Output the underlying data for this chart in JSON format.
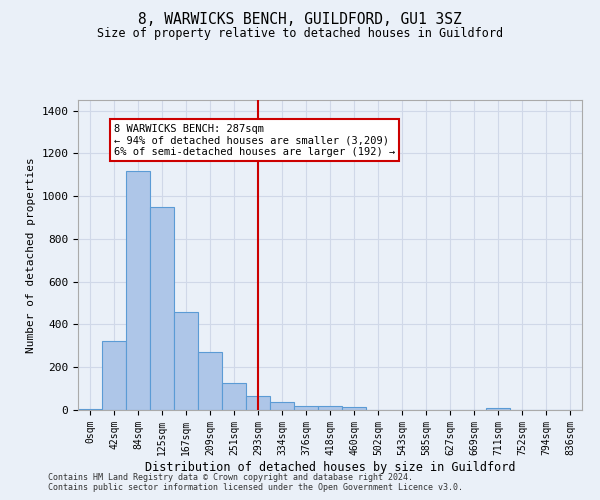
{
  "title1": "8, WARWICKS BENCH, GUILDFORD, GU1 3SZ",
  "title2": "Size of property relative to detached houses in Guildford",
  "xlabel": "Distribution of detached houses by size in Guildford",
  "ylabel": "Number of detached properties",
  "footnote1": "Contains HM Land Registry data © Crown copyright and database right 2024.",
  "footnote2": "Contains public sector information licensed under the Open Government Licence v3.0.",
  "bar_labels": [
    "0sqm",
    "42sqm",
    "84sqm",
    "125sqm",
    "167sqm",
    "209sqm",
    "251sqm",
    "293sqm",
    "334sqm",
    "376sqm",
    "418sqm",
    "460sqm",
    "502sqm",
    "543sqm",
    "585sqm",
    "627sqm",
    "669sqm",
    "711sqm",
    "752sqm",
    "794sqm",
    "836sqm"
  ],
  "bar_values": [
    5,
    325,
    1120,
    950,
    460,
    270,
    125,
    65,
    38,
    20,
    20,
    12,
    0,
    0,
    0,
    0,
    0,
    10,
    0,
    0,
    0
  ],
  "bar_color": "#aec6e8",
  "bar_edge_color": "#5b9bd5",
  "grid_color": "#d0d8e8",
  "background_color": "#eaf0f8",
  "vline_x": 7,
  "vline_color": "#cc0000",
  "annotation_text": "8 WARWICKS BENCH: 287sqm\n← 94% of detached houses are smaller (3,209)\n6% of semi-detached houses are larger (192) →",
  "annotation_box_color": "#ffffff",
  "annotation_box_edge": "#cc0000",
  "ylim": [
    0,
    1450
  ],
  "yticks": [
    0,
    200,
    400,
    600,
    800,
    1000,
    1200,
    1400
  ]
}
